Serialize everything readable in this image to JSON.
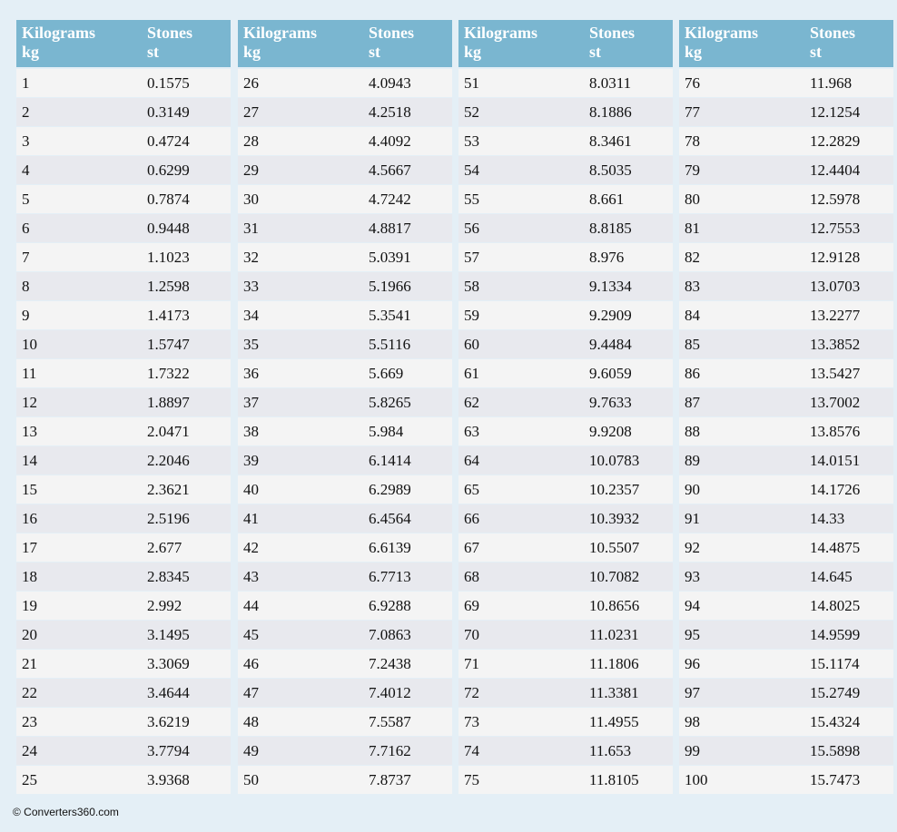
{
  "tables": [
    {
      "headers": [
        [
          "Kilograms",
          "kg"
        ],
        [
          "Stones",
          "st"
        ]
      ],
      "rows": [
        [
          "1",
          "0.1575"
        ],
        [
          "2",
          "0.3149"
        ],
        [
          "3",
          "0.4724"
        ],
        [
          "4",
          "0.6299"
        ],
        [
          "5",
          "0.7874"
        ],
        [
          "6",
          "0.9448"
        ],
        [
          "7",
          "1.1023"
        ],
        [
          "8",
          "1.2598"
        ],
        [
          "9",
          "1.4173"
        ],
        [
          "10",
          "1.5747"
        ],
        [
          "11",
          "1.7322"
        ],
        [
          "12",
          "1.8897"
        ],
        [
          "13",
          "2.0471"
        ],
        [
          "14",
          "2.2046"
        ],
        [
          "15",
          "2.3621"
        ],
        [
          "16",
          "2.5196"
        ],
        [
          "17",
          "2.677"
        ],
        [
          "18",
          "2.8345"
        ],
        [
          "19",
          "2.992"
        ],
        [
          "20",
          "3.1495"
        ],
        [
          "21",
          "3.3069"
        ],
        [
          "22",
          "3.4644"
        ],
        [
          "23",
          "3.6219"
        ],
        [
          "24",
          "3.7794"
        ],
        [
          "25",
          "3.9368"
        ]
      ]
    },
    {
      "headers": [
        [
          "Kilograms",
          "kg"
        ],
        [
          "Stones",
          "st"
        ]
      ],
      "rows": [
        [
          "26",
          "4.0943"
        ],
        [
          "27",
          "4.2518"
        ],
        [
          "28",
          "4.4092"
        ],
        [
          "29",
          "4.5667"
        ],
        [
          "30",
          "4.7242"
        ],
        [
          "31",
          "4.8817"
        ],
        [
          "32",
          "5.0391"
        ],
        [
          "33",
          "5.1966"
        ],
        [
          "34",
          "5.3541"
        ],
        [
          "35",
          "5.5116"
        ],
        [
          "36",
          "5.669"
        ],
        [
          "37",
          "5.8265"
        ],
        [
          "38",
          "5.984"
        ],
        [
          "39",
          "6.1414"
        ],
        [
          "40",
          "6.2989"
        ],
        [
          "41",
          "6.4564"
        ],
        [
          "42",
          "6.6139"
        ],
        [
          "43",
          "6.7713"
        ],
        [
          "44",
          "6.9288"
        ],
        [
          "45",
          "7.0863"
        ],
        [
          "46",
          "7.2438"
        ],
        [
          "47",
          "7.4012"
        ],
        [
          "48",
          "7.5587"
        ],
        [
          "49",
          "7.7162"
        ],
        [
          "50",
          "7.8737"
        ]
      ]
    },
    {
      "headers": [
        [
          "Kilograms",
          "kg"
        ],
        [
          "Stones",
          "st"
        ]
      ],
      "rows": [
        [
          "51",
          "8.0311"
        ],
        [
          "52",
          "8.1886"
        ],
        [
          "53",
          "8.3461"
        ],
        [
          "54",
          "8.5035"
        ],
        [
          "55",
          "8.661"
        ],
        [
          "56",
          "8.8185"
        ],
        [
          "57",
          "8.976"
        ],
        [
          "58",
          "9.1334"
        ],
        [
          "59",
          "9.2909"
        ],
        [
          "60",
          "9.4484"
        ],
        [
          "61",
          "9.6059"
        ],
        [
          "62",
          "9.7633"
        ],
        [
          "63",
          "9.9208"
        ],
        [
          "64",
          "10.0783"
        ],
        [
          "65",
          "10.2357"
        ],
        [
          "66",
          "10.3932"
        ],
        [
          "67",
          "10.5507"
        ],
        [
          "68",
          "10.7082"
        ],
        [
          "69",
          "10.8656"
        ],
        [
          "70",
          "11.0231"
        ],
        [
          "71",
          "11.1806"
        ],
        [
          "72",
          "11.3381"
        ],
        [
          "73",
          "11.4955"
        ],
        [
          "74",
          "11.653"
        ],
        [
          "75",
          "11.8105"
        ]
      ]
    },
    {
      "headers": [
        [
          "Kilograms",
          "kg"
        ],
        [
          "Stones",
          "st"
        ]
      ],
      "rows": [
        [
          "76",
          "11.968"
        ],
        [
          "77",
          "12.1254"
        ],
        [
          "78",
          "12.2829"
        ],
        [
          "79",
          "12.4404"
        ],
        [
          "80",
          "12.5978"
        ],
        [
          "81",
          "12.7553"
        ],
        [
          "82",
          "12.9128"
        ],
        [
          "83",
          "13.0703"
        ],
        [
          "84",
          "13.2277"
        ],
        [
          "85",
          "13.3852"
        ],
        [
          "86",
          "13.5427"
        ],
        [
          "87",
          "13.7002"
        ],
        [
          "88",
          "13.8576"
        ],
        [
          "89",
          "14.0151"
        ],
        [
          "90",
          "14.1726"
        ],
        [
          "91",
          "14.33"
        ],
        [
          "92",
          "14.4875"
        ],
        [
          "93",
          "14.645"
        ],
        [
          "94",
          "14.8025"
        ],
        [
          "95",
          "14.9599"
        ],
        [
          "96",
          "15.1174"
        ],
        [
          "97",
          "15.2749"
        ],
        [
          "98",
          "15.4324"
        ],
        [
          "99",
          "15.5898"
        ],
        [
          "100",
          "15.7473"
        ]
      ]
    }
  ],
  "footer": "© Converters360.com"
}
